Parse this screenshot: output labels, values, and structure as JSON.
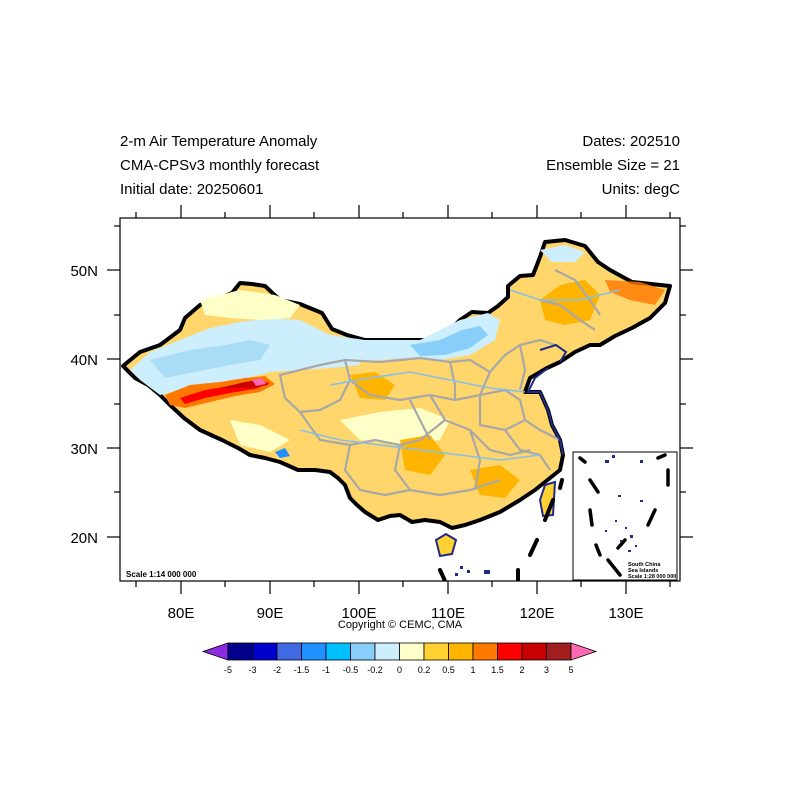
{
  "header": {
    "title_line1": "2-m Air Temperature Anomaly",
    "title_line2": "CMA-CPSv3 monthly forecast",
    "title_line3": "Initial date: 20250601",
    "right_line1": "Dates: 202510",
    "right_line2": "Ensemble Size = 21",
    "right_line3": "Units: degC"
  },
  "map": {
    "lon_ticks": [
      "80E",
      "90E",
      "100E",
      "110E",
      "120E",
      "130E"
    ],
    "lat_ticks": [
      "50N",
      "40N",
      "30N",
      "20N"
    ],
    "scale_main": "Scale 1:14 000 000",
    "inset": {
      "line1": "South China",
      "line2": "Sea Islands",
      "line3": "Scale 1:28 000 000"
    }
  },
  "copyright": "Copyright © CEMC, CMA",
  "colorbar": {
    "labels": [
      "-5",
      "-3",
      "-2",
      "-1.5",
      "-1",
      "-0.5",
      "-0.2",
      "0",
      "0.2",
      "0.5",
      "1",
      "1.5",
      "2",
      "3",
      "5"
    ],
    "colors": [
      "#8b2be2",
      "#00008b",
      "#0000cd",
      "#4169e1",
      "#1e90ff",
      "#00bfff",
      "#87cefa",
      "#cdeefc",
      "#ffffc8",
      "#ffd232",
      "#ffb400",
      "#ff7800",
      "#ff0000",
      "#c80000",
      "#a01e1e",
      "#ff69b4"
    ]
  }
}
